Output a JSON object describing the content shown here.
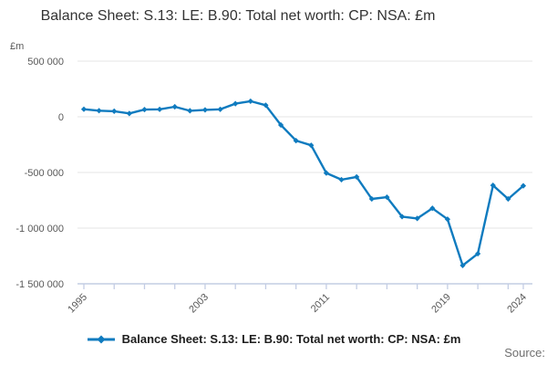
{
  "title": "Balance Sheet: S.13: LE: B.90: Total net worth: CP: NSA: £m",
  "unit_label": "£m",
  "legend": {
    "label": "Balance Sheet: S.13: LE: B.90: Total net worth: CP: NSA: £m"
  },
  "source_label": "Source:",
  "colors": {
    "line": "#0f7bbf",
    "grid": "#e4e4e4",
    "axis": "#c3cde4",
    "tick_text": "#595959",
    "title_text": "#333333",
    "source_text": "#6f6f6f"
  },
  "chart_data": {
    "type": "line",
    "title": "Balance Sheet: S.13: LE: B.90: Total net worth: CP: NSA: £m",
    "xlabel": "",
    "ylabel": "£m",
    "series_name": "Balance Sheet: S.13: LE: B.90: Total net worth: CP: NSA: £m",
    "x": [
      1995,
      1996,
      1997,
      1998,
      1999,
      2000,
      2001,
      2002,
      2003,
      2004,
      2005,
      2006,
      2007,
      2008,
      2009,
      2010,
      2011,
      2012,
      2013,
      2014,
      2015,
      2016,
      2017,
      2018,
      2019,
      2020,
      2021,
      2022,
      2023,
      2024
    ],
    "values": [
      68000,
      55000,
      50000,
      30000,
      65000,
      67000,
      90000,
      54000,
      62000,
      67000,
      118000,
      140000,
      104000,
      -74000,
      -214000,
      -256000,
      -505000,
      -565000,
      -540000,
      -738000,
      -722000,
      -897000,
      -913000,
      -822000,
      -920000,
      -1335000,
      -1230000,
      -616000,
      -738000,
      -620000
    ],
    "ylim": [
      -1500000,
      500000
    ],
    "y_ticks": [
      {
        "value": 500000,
        "label": "500 000"
      },
      {
        "value": 0,
        "label": "0"
      },
      {
        "value": -500000,
        "label": "-500 000"
      },
      {
        "value": -1000000,
        "label": "-1 000 000"
      },
      {
        "value": -1500000,
        "label": "-1 500 000"
      }
    ],
    "x_tick_labels": [
      1995,
      2003,
      2011,
      2019,
      2024
    ],
    "minor_tick_step_years": 2,
    "grid": true,
    "legend_position": "bottom",
    "marker": "diamond"
  }
}
